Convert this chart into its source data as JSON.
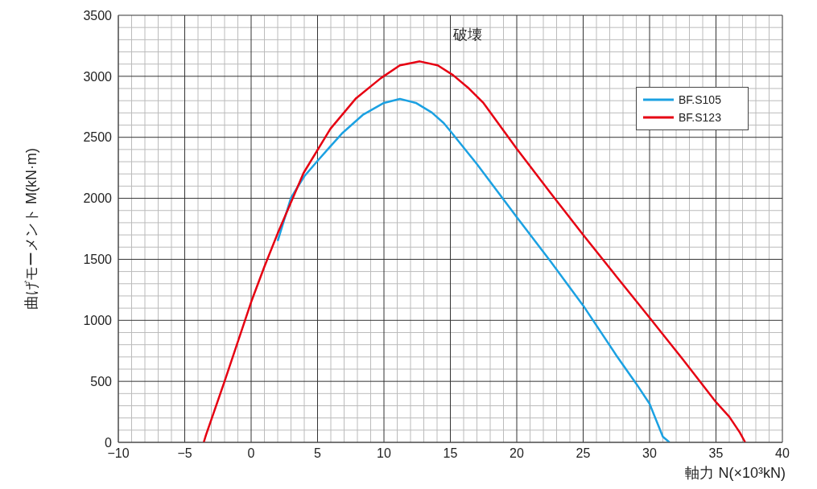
{
  "chart_data": {
    "type": "line",
    "xlabel": "軸力 N(×10³kN)",
    "ylabel": "曲げモーメント M(kN·m)",
    "annotations": [
      "破壊"
    ],
    "xlim": [
      -10,
      40
    ],
    "xticks": [
      {
        "value": -10,
        "label": "−10"
      },
      {
        "value": -5,
        "label": "−5"
      },
      0,
      5,
      10,
      15,
      20,
      25,
      30,
      35,
      40
    ],
    "ylim": [
      0,
      3500
    ],
    "yticks": [
      0,
      500,
      1000,
      1500,
      2000,
      2500,
      3000,
      3500
    ],
    "grid": true,
    "legend": "top right",
    "line_style": "solid",
    "marker": "none",
    "series": [
      {
        "name": "BF.S105",
        "color": "#1ba1e2",
        "x": [
          2,
          3,
          4,
          5,
          6,
          6.9,
          8.4,
          10,
          11.2,
          12.4,
          13.6,
          14.5,
          15.1,
          17,
          20,
          22.5,
          25,
          27.5,
          29,
          30,
          31,
          31.5
        ],
        "values": [
          1650,
          2004,
          2180,
          2307,
          2430,
          2538,
          2683,
          2782,
          2815,
          2782,
          2703,
          2617,
          2538,
          2280,
          1846,
          1490,
          1121,
          712,
          480,
          316,
          46,
          0
        ]
      },
      {
        "name": "BF.S123",
        "color": "#e60012",
        "x": [
          -3.57,
          -3.4,
          -2,
          0,
          1,
          2,
          3.95,
          5.97,
          7.9,
          9.77,
          11.2,
          12.7,
          14.05,
          15.2,
          16.4,
          17.5,
          20,
          22.5,
          25,
          27.5,
          30,
          32.5,
          35,
          36,
          36.8,
          37.2
        ],
        "values": [
          0,
          60,
          500,
          1150,
          1440,
          1713,
          2208,
          2570,
          2820,
          2985,
          3090,
          3122,
          3090,
          3010,
          2900,
          2780,
          2406,
          2050,
          1700,
          1360,
          1022,
          680,
          330,
          210,
          80,
          0
        ]
      }
    ]
  }
}
